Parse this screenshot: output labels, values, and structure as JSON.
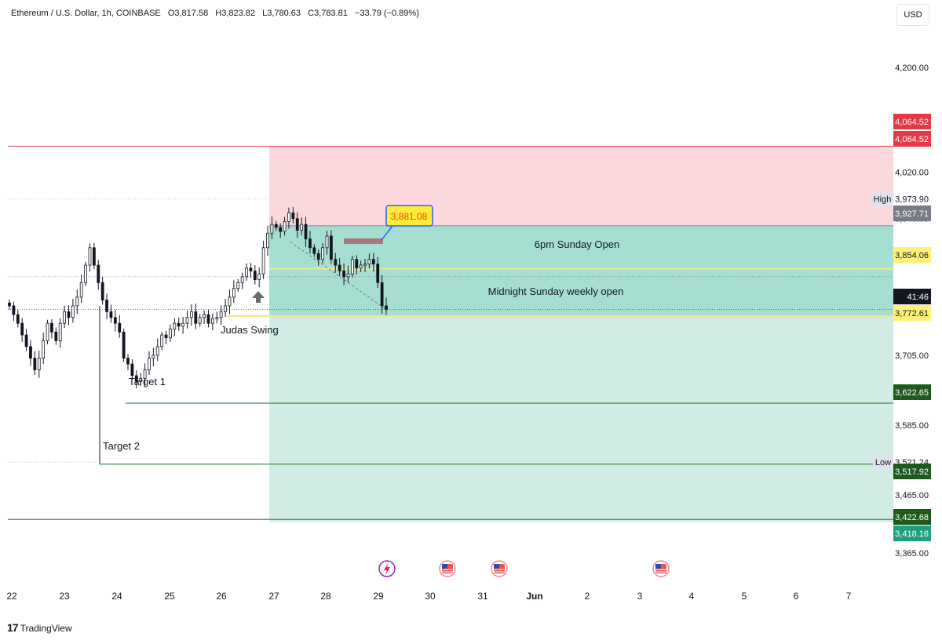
{
  "legend": {
    "symbol": "Ethereum / U.S. Dollar, 1h, COINBASE",
    "open": "O3,817.58",
    "high": "H3,823.82",
    "low": "L3,780.63",
    "close": "C3,783.81",
    "change": "−33.79 (−0.89%)"
  },
  "currency_button": "USD",
  "footer": {
    "brand_mark": "17",
    "brand_name": "TradingView"
  },
  "colors": {
    "red_zone": "#fcd8dc",
    "target_zone_dark": "#a7ded2",
    "target_zone_light": "#d1ebe5",
    "red_line": "#e45a66",
    "green_line": "#3f8a4b",
    "candle": "#131722",
    "yellow_line": "#f2e68a",
    "label_red": "#e63945",
    "label_green_dark": "#1e5a1e",
    "label_teal": "#1f9f7f",
    "label_yellow": "#fff176",
    "label_gray": "#787b86"
  },
  "chart_data": {
    "type": "candlestick",
    "x_ticks": [
      "22",
      "23",
      "24",
      "25",
      "26",
      "27",
      "28",
      "29",
      "30",
      "31",
      "Jun",
      "2",
      "3",
      "4",
      "5",
      "6",
      "7"
    ],
    "y_ticks": [
      4200.0,
      4020.0,
      3940.0,
      3705.0,
      3645.0,
      3585.0,
      3465.0,
      3365.0
    ],
    "y_range": [
      3345,
      4310
    ],
    "close_series": [
      3790,
      3775,
      3760,
      3740,
      3720,
      3700,
      3680,
      3700,
      3730,
      3760,
      3745,
      3730,
      3760,
      3780,
      3770,
      3790,
      3805,
      3830,
      3860,
      3890,
      3860,
      3830,
      3800,
      3780,
      3770,
      3760,
      3745,
      3700,
      3690,
      3670,
      3660,
      3665,
      3680,
      3700,
      3705,
      3720,
      3740,
      3735,
      3750,
      3760,
      3755,
      3760,
      3770,
      3780,
      3760,
      3770,
      3775,
      3760,
      3768,
      3770,
      3780,
      3790,
      3805,
      3820,
      3830,
      3840,
      3855,
      3850,
      3835,
      3845,
      3890,
      3915,
      3930,
      3925,
      3918,
      3935,
      3950,
      3940,
      3920,
      3930,
      3905,
      3890,
      3880,
      3870,
      3890,
      3910,
      3870,
      3860,
      3850,
      3840,
      3845,
      3870,
      3855,
      3860,
      3862,
      3870,
      3862,
      3830,
      3790,
      3784
    ],
    "price_levels": [
      {
        "price": 4064.52,
        "label": "4,064.52",
        "kind": "red-line"
      },
      {
        "price": 3927.71,
        "label": "3,927.71",
        "kind": "zone-top"
      },
      {
        "price": 3854.06,
        "label": "3,854.06",
        "kind": "yellow-line"
      },
      {
        "price": 3772.61,
        "label": "3,772.61",
        "kind": "yellow-line"
      },
      {
        "price": 3622.65,
        "label": "3,622.65",
        "kind": "green-line"
      },
      {
        "price": 3517.92,
        "label": "3,517.92",
        "kind": "green-line"
      },
      {
        "price": 3422.68,
        "label": "3,422.68",
        "kind": "green-line"
      },
      {
        "price": 3418.16,
        "label": "3,418.16",
        "kind": "zone-bottom"
      }
    ],
    "axis_labels": [
      {
        "text": "4,064.52",
        "bg": "#e63945",
        "fg": "#ffffff",
        "y": 155
      },
      {
        "text": "4,064.52",
        "bg": "#e63945",
        "fg": "#ffffff",
        "y": 177
      },
      {
        "text": "3,927.71",
        "bg": "#787b86",
        "fg": "#ffffff",
        "y": 272
      },
      {
        "text": "3,854.06",
        "bg": "#fff176",
        "fg": "#131722",
        "y": 325
      },
      {
        "text": "41:46",
        "bg": "#131722",
        "fg": "#ffffff",
        "y": 378
      },
      {
        "text": "3,772.61",
        "bg": "#fff176",
        "fg": "#131722",
        "y": 399
      },
      {
        "text": "3,622.65",
        "bg": "#1e5a1e",
        "fg": "#ffffff",
        "y": 500
      },
      {
        "text": "3,517.92",
        "bg": "#1e5a1e",
        "fg": "#ffffff",
        "y": 601
      },
      {
        "text": "3,422.68",
        "bg": "#1e5a1e",
        "fg": "#ffffff",
        "y": 659
      },
      {
        "text": "3,418.16",
        "bg": "#1f9f7f",
        "fg": "#ffffff",
        "y": 680
      }
    ],
    "high_marker": {
      "label": "High",
      "value": "3,973.90"
    },
    "low_marker": {
      "label": "Low",
      "value": "3,521.24"
    },
    "annotations": {
      "sunday_open": "6pm Sunday Open",
      "midnight_open": "Midnight Sunday weekly open",
      "judas_swing": "Judas Swing",
      "target_1": "Target 1",
      "target_2": "Target 2",
      "price_callout": "3,881.08"
    },
    "event_icons": [
      "lightning-icon",
      "us-flag-icon",
      "us-flag-icon",
      "us-flag-icon"
    ]
  }
}
